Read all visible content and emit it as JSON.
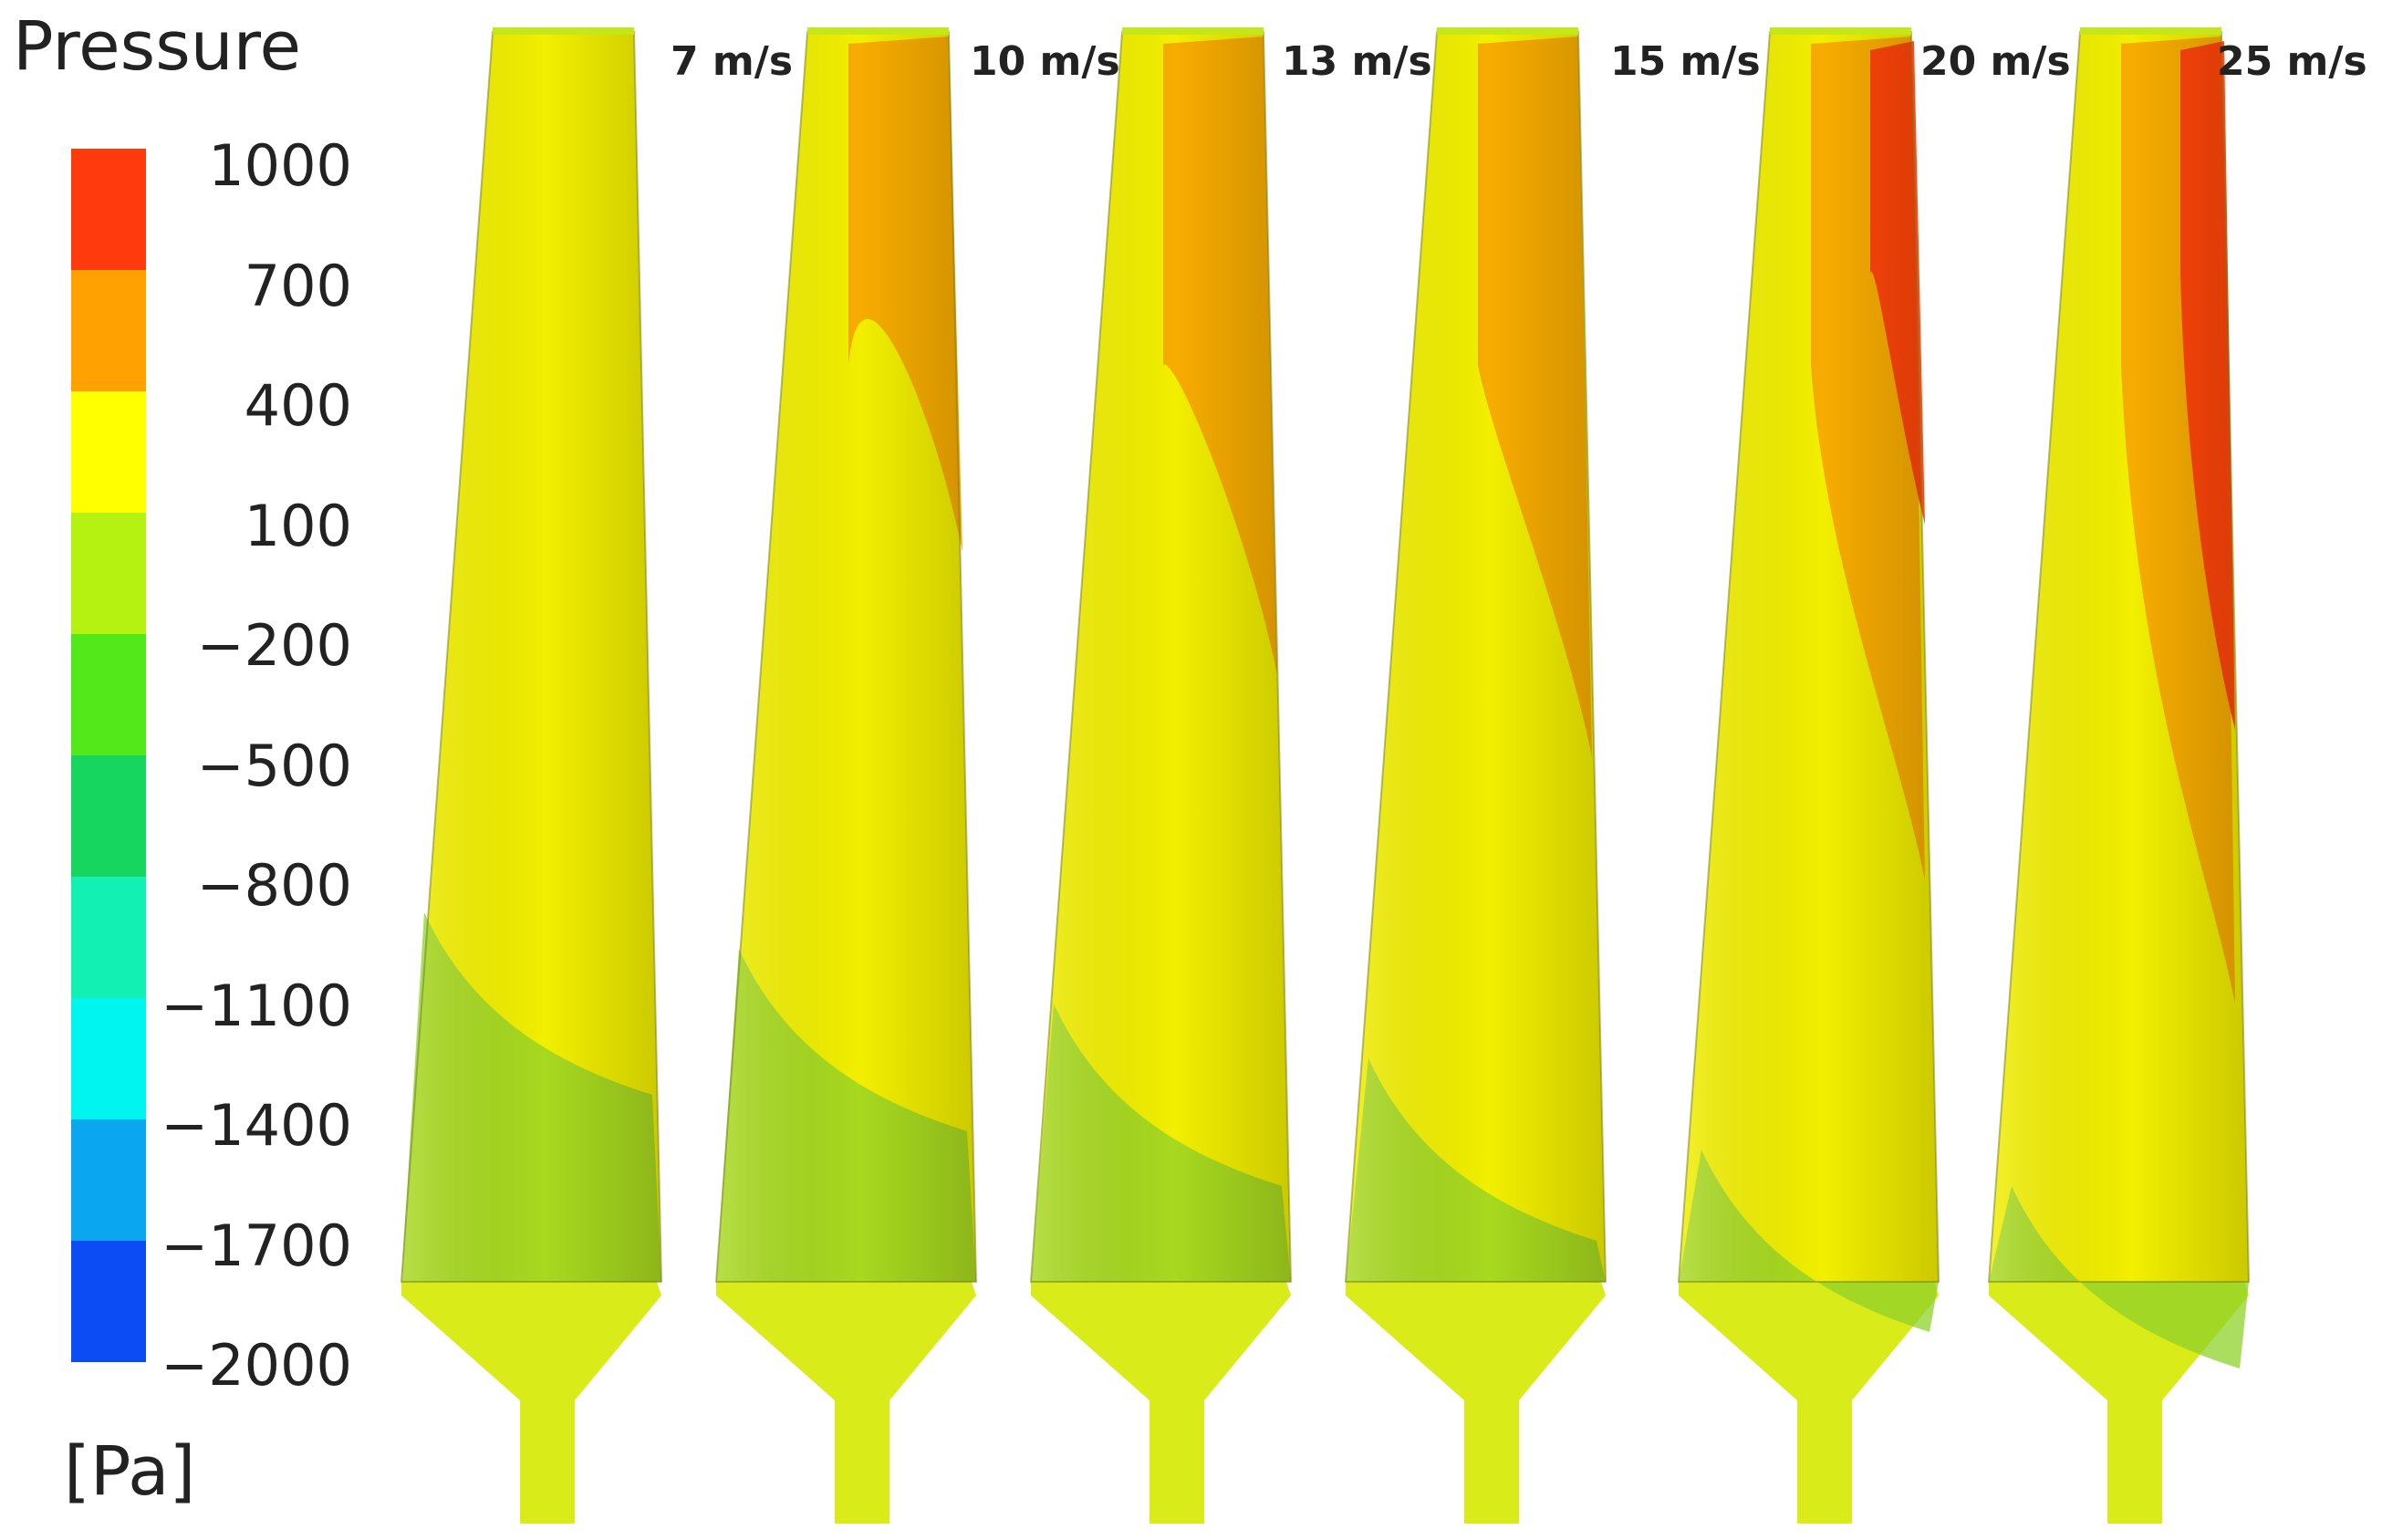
{
  "legend": {
    "title": "Pressure",
    "unit": "[Pa]",
    "ticks": [
      "1000",
      "700",
      "400",
      "100",
      "−200",
      "−500",
      "−800",
      "−1100",
      "−1400",
      "−1700",
      "−2000"
    ],
    "band_colors": [
      "#ff3a0c",
      "#ffa100",
      "#ffff00",
      "#b5f212",
      "#52e81a",
      "#17d660",
      "#12f0b4",
      "#00f5f0",
      "#0aa6ef",
      "#0b4cf5"
    ]
  },
  "blades": [
    {
      "label": "7 m/s"
    },
    {
      "label": "10 m/s"
    },
    {
      "label": "13 m/s"
    },
    {
      "label": "15 m/s"
    },
    {
      "label": "20 m/s"
    },
    {
      "label": "25 m/s"
    }
  ],
  "colors": {
    "red": "#ff3c0a",
    "orange": "#f7a400",
    "yellow": "#f2ef00",
    "yellow_green": "#c6e61c",
    "green": "#8fd22a",
    "hub": "#d9ec1a"
  }
}
